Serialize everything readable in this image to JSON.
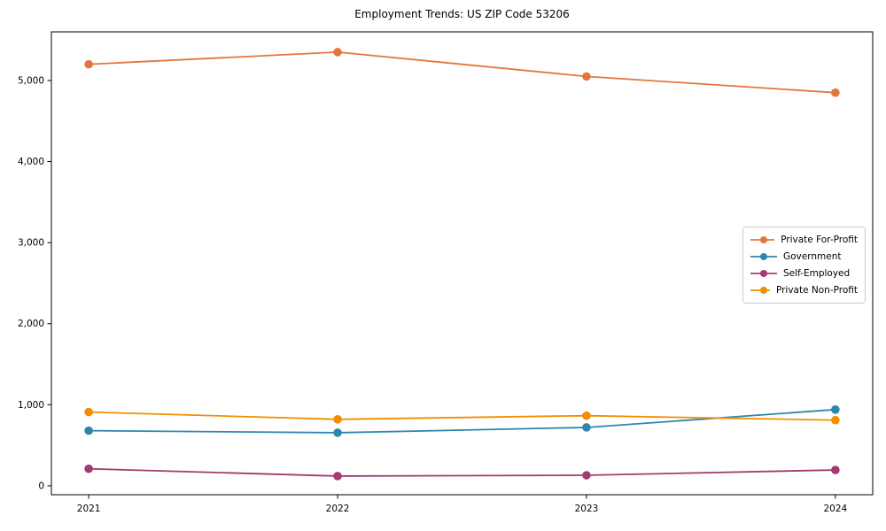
{
  "window": {
    "background_color": "#ffffff",
    "text_color": "#000000",
    "spine_color": "#000000",
    "legend_border_color": "#cccccc"
  },
  "chart_data": {
    "type": "line",
    "title": "Employment Trends: US ZIP Code 53206",
    "xlabel": "",
    "ylabel": "",
    "x": [
      2021,
      2022,
      2023,
      2024
    ],
    "categories": [
      "2021",
      "2022",
      "2023",
      "2024"
    ],
    "series": [
      {
        "name": "Private For-Profit",
        "color": "#E2773D",
        "values": [
          5200,
          5350,
          5050,
          4850
        ]
      },
      {
        "name": "Government",
        "color": "#2E86AB",
        "values": [
          680,
          655,
          720,
          940
        ]
      },
      {
        "name": "Self-Employed",
        "color": "#A23B72",
        "values": [
          210,
          120,
          130,
          195
        ]
      },
      {
        "name": "Private Non-Profit",
        "color": "#F18F01",
        "values": [
          910,
          820,
          865,
          810
        ]
      }
    ],
    "yticks": [
      0,
      1000,
      2000,
      3000,
      4000,
      5000
    ],
    "ytick_labels": [
      "0",
      "1,000",
      "2,000",
      "3,000",
      "4,000",
      "5,000"
    ],
    "xlim": [
      2020.85,
      2024.15
    ],
    "ylim": [
      -110,
      5600
    ],
    "grid": false,
    "legend_position": "center right",
    "marker": "circle"
  }
}
